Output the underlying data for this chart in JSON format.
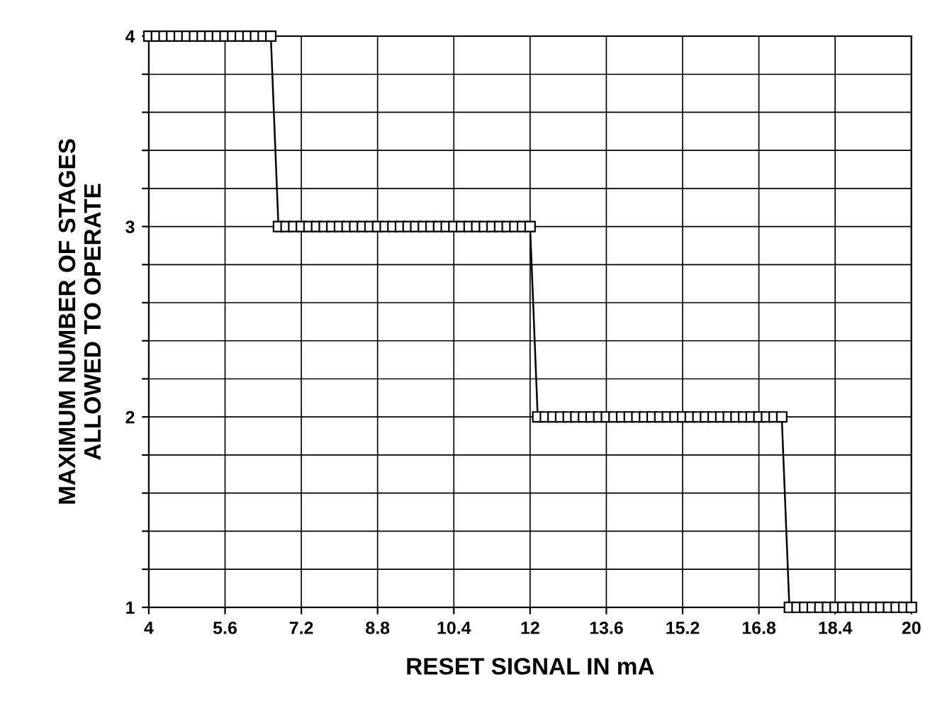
{
  "chart_data": {
    "type": "line",
    "xlabel": "RESET SIGNAL IN mA",
    "ylabel": "MAXIMUM NUMBER OF STAGES\nALLOWED TO OPERATE",
    "series": [
      {
        "color": "#000000",
        "x": [
          4,
          4.16,
          4.32,
          4.48,
          4.64,
          4.8,
          4.96,
          5.12,
          5.28,
          5.44,
          5.6,
          5.76,
          5.92,
          6.08,
          6.24,
          6.4,
          6.56,
          6.72,
          6.88,
          7.04,
          7.2,
          7.36,
          7.52,
          7.68,
          7.84,
          8,
          8.16,
          8.32,
          8.48,
          8.64,
          8.8,
          8.96,
          9.12,
          9.28,
          9.44,
          9.6,
          9.76,
          9.92,
          10.08,
          10.24,
          10.4,
          10.56,
          10.72,
          10.88,
          11.04,
          11.2,
          11.36,
          11.52,
          11.68,
          11.84,
          12,
          12.16,
          12.32,
          12.48,
          12.64,
          12.8,
          12.96,
          13.12,
          13.28,
          13.44,
          13.6,
          13.76,
          13.92,
          14.08,
          14.24,
          14.4,
          14.56,
          14.72,
          14.88,
          15.04,
          15.2,
          15.36,
          15.52,
          15.68,
          15.84,
          16,
          16.16,
          16.32,
          16.48,
          16.64,
          16.8,
          16.96,
          17.12,
          17.28,
          17.44,
          17.6,
          17.76,
          17.92,
          18.08,
          18.24,
          18.4,
          18.56,
          18.72,
          18.88,
          19.04,
          19.2,
          19.36,
          19.52,
          19.68,
          19.84,
          20
        ],
        "values": [
          4,
          4,
          4,
          4,
          4,
          4,
          4,
          4,
          4,
          4,
          4,
          4,
          4,
          4,
          4,
          4,
          4,
          3,
          3,
          3,
          3,
          3,
          3,
          3,
          3,
          3,
          3,
          3,
          3,
          3,
          3,
          3,
          3,
          3,
          3,
          3,
          3,
          3,
          3,
          3,
          3,
          3,
          3,
          3,
          3,
          3,
          3,
          3,
          3,
          3,
          3,
          2,
          2,
          2,
          2,
          2,
          2,
          2,
          2,
          2,
          2,
          2,
          2,
          2,
          2,
          2,
          2,
          2,
          2,
          2,
          2,
          2,
          2,
          2,
          2,
          2,
          2,
          2,
          2,
          2,
          2,
          2,
          2,
          2,
          1,
          1,
          1,
          1,
          1,
          1,
          1,
          1,
          1,
          1,
          1,
          1,
          1,
          1,
          1,
          1,
          1
        ]
      }
    ],
    "xlim": [
      4,
      20
    ],
    "xticks": [
      4,
      5.6,
      7.2,
      8.8,
      10.4,
      12,
      13.6,
      15.2,
      16.8,
      18.4,
      20
    ],
    "ylim": [
      1,
      4
    ],
    "yticks": [
      1,
      {
        "value": 1.2,
        "label": null
      },
      {
        "value": 1.4,
        "label": null
      },
      {
        "value": 1.6,
        "label": null
      },
      {
        "value": 1.8,
        "label": null
      },
      2,
      {
        "value": 2.2,
        "label": null
      },
      {
        "value": 2.4,
        "label": null
      },
      {
        "value": 2.6,
        "label": null
      },
      {
        "value": 2.8,
        "label": null
      },
      3,
      {
        "value": 3.2,
        "label": null
      },
      {
        "value": 3.4,
        "label": null
      },
      {
        "value": 3.6,
        "label": null
      },
      {
        "value": 3.8,
        "label": null
      },
      4
    ],
    "grid": true,
    "marker": "square",
    "line_style": "solid"
  }
}
